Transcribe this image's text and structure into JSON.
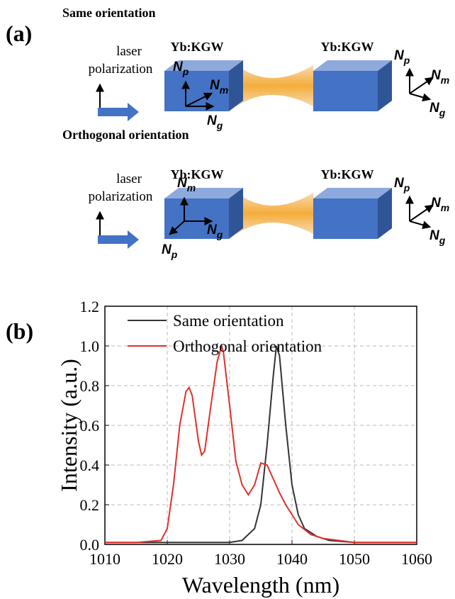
{
  "panel_a": {
    "label": "(a)",
    "rows": [
      {
        "title": "Same orientation",
        "laser": [
          "laser",
          "polarization"
        ],
        "crystals": [
          "Yb:KGW",
          "Yb:KGW"
        ],
        "axes_in": [
          {
            "main": "N",
            "sub": "p"
          },
          {
            "main": "N",
            "sub": "m"
          },
          {
            "main": "N",
            "sub": "g"
          }
        ],
        "axes_out": [
          {
            "main": "N",
            "sub": "p"
          },
          {
            "main": "N",
            "sub": "m"
          },
          {
            "main": "N",
            "sub": "g"
          }
        ]
      },
      {
        "title": "Orthogonal orientation",
        "laser": [
          "laser",
          "polarization"
        ],
        "crystals": [
          "Yb:KGW",
          "Yb:KGW"
        ],
        "axes_in": [
          {
            "main": "N",
            "sub": "m"
          },
          {
            "main": "N",
            "sub": "g"
          },
          {
            "main": "N",
            "sub": "p"
          }
        ],
        "axes_out": [
          {
            "main": "N",
            "sub": "p"
          },
          {
            "main": "N",
            "sub": "m"
          },
          {
            "main": "N",
            "sub": "g"
          }
        ]
      }
    ]
  },
  "panel_b": {
    "label": "(b)"
  },
  "chart_data": {
    "type": "line",
    "xlabel": "Wavelength (nm)",
    "ylabel": "Intensity (a.u.)",
    "xlim": [
      1010,
      1060
    ],
    "xticks": [
      1010,
      1020,
      1030,
      1040,
      1050,
      1060
    ],
    "ylim": [
      0,
      1.2
    ],
    "yticks": [
      {
        "value": 0,
        "label": "0.0"
      },
      0.2,
      0.4,
      0.6,
      0.8,
      {
        "value": 1,
        "label": "1.0"
      },
      1.2
    ],
    "grid": true,
    "series": [
      {
        "name": "Same orientation",
        "color": "#333333",
        "x": [
          1010,
          1015,
          1020,
          1025,
          1030,
          1032,
          1034,
          1035,
          1036,
          1037,
          1037.5,
          1038,
          1039,
          1040,
          1041,
          1042,
          1044,
          1046,
          1050,
          1055,
          1060
        ],
        "values": [
          0.01,
          0.01,
          0.01,
          0.01,
          0.01,
          0.02,
          0.08,
          0.2,
          0.5,
          0.85,
          1.0,
          0.95,
          0.6,
          0.3,
          0.15,
          0.08,
          0.04,
          0.02,
          0.01,
          0.01,
          0.01
        ]
      },
      {
        "name": "Orthogonal orientation",
        "color": "#e0302a",
        "x": [
          1010,
          1015,
          1019,
          1020,
          1021,
          1022,
          1023,
          1023.5,
          1024,
          1025,
          1025.5,
          1026,
          1027,
          1028,
          1028.7,
          1029,
          1030,
          1031,
          1032,
          1033,
          1034,
          1035,
          1036,
          1037,
          1038,
          1039,
          1040,
          1041,
          1043,
          1045,
          1050,
          1055,
          1060
        ],
        "values": [
          0.01,
          0.01,
          0.02,
          0.08,
          0.3,
          0.6,
          0.77,
          0.79,
          0.75,
          0.52,
          0.45,
          0.47,
          0.7,
          0.92,
          1.0,
          0.97,
          0.7,
          0.42,
          0.3,
          0.25,
          0.3,
          0.41,
          0.4,
          0.33,
          0.26,
          0.2,
          0.15,
          0.1,
          0.05,
          0.03,
          0.01,
          0.01,
          0.01
        ]
      }
    ]
  }
}
